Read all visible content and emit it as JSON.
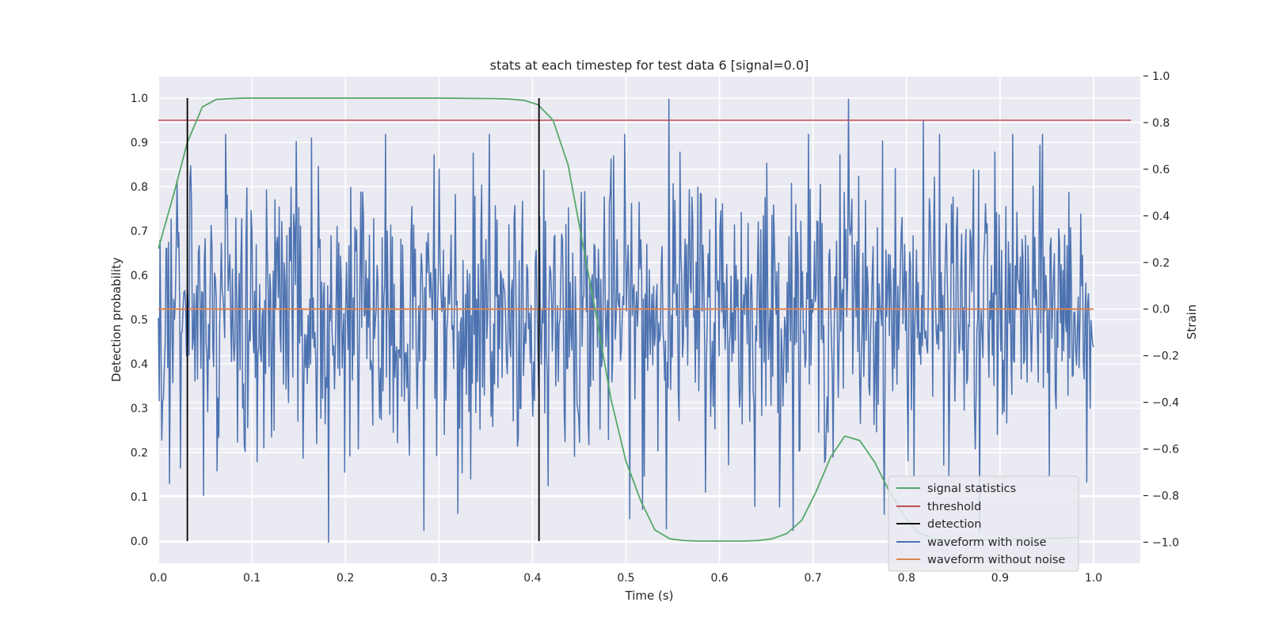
{
  "chart_data": {
    "type": "line",
    "title": "stats at each timestep for test data 6 [signal=0.0]",
    "xlabel": "Time (s)",
    "ylabel_left": "Detection probability",
    "ylabel_right": "Strain",
    "xlim": [
      0.0,
      1.05
    ],
    "ylim_left": [
      -0.05,
      1.05
    ],
    "ylim_right": [
      -1.09,
      1.0
    ],
    "x_ticks": [
      0.0,
      0.1,
      0.2,
      0.3,
      0.4,
      0.5,
      0.6,
      0.7,
      0.8,
      0.9,
      1.0
    ],
    "x_tick_labels": [
      "0.0",
      "0.1",
      "0.2",
      "0.3",
      "0.4",
      "0.5",
      "0.6",
      "0.7",
      "0.8",
      "0.9",
      "1.0"
    ],
    "y_left_ticks": [
      0.0,
      0.1,
      0.2,
      0.3,
      0.4,
      0.5,
      0.6,
      0.7,
      0.8,
      0.9,
      1.0
    ],
    "y_left_tick_labels": [
      "0.0",
      "0.1",
      "0.2",
      "0.3",
      "0.4",
      "0.5",
      "0.6",
      "0.7",
      "0.8",
      "0.9",
      "1.0"
    ],
    "y_right_ticks": [
      -1.0,
      -0.8,
      -0.6,
      -0.4,
      -0.2,
      0.0,
      0.2,
      0.4,
      0.6,
      0.8,
      1.0
    ],
    "y_right_tick_labels": [
      "−1.0",
      "−0.8",
      "−0.6",
      "−0.4",
      "−0.2",
      "0.0",
      "0.2",
      "0.4",
      "0.6",
      "0.8",
      "1.0"
    ],
    "grid": true,
    "legend_position": "bottom-right",
    "series": [
      {
        "name": "signal statistics",
        "axis": "left",
        "color": "#55a868",
        "x": [
          0.0,
          0.016,
          0.031,
          0.047,
          0.062,
          0.078,
          0.094,
          0.109,
          0.2,
          0.3,
          0.359,
          0.375,
          0.391,
          0.406,
          0.422,
          0.438,
          0.453,
          0.469,
          0.484,
          0.5,
          0.516,
          0.531,
          0.547,
          0.562,
          0.578,
          0.6,
          0.625,
          0.641,
          0.656,
          0.672,
          0.688,
          0.703,
          0.719,
          0.734,
          0.75,
          0.766,
          0.781,
          0.797,
          0.812,
          0.828,
          0.844,
          0.859,
          0.875,
          0.9,
          0.95,
          0.984
        ],
        "y": [
          0.66,
          0.78,
          0.9,
          0.98,
          0.997,
          0.999,
          1.0,
          1.0,
          1.0,
          1.0,
          0.999,
          0.998,
          0.995,
          0.985,
          0.95,
          0.85,
          0.68,
          0.5,
          0.32,
          0.18,
          0.09,
          0.025,
          0.005,
          0.001,
          0.0,
          0.0,
          0.0,
          0.001,
          0.005,
          0.017,
          0.047,
          0.11,
          0.19,
          0.237,
          0.227,
          0.178,
          0.115,
          0.058,
          0.02,
          0.006,
          0.002,
          0.001,
          0.002,
          0.004,
          0.006,
          0.008
        ]
      },
      {
        "name": "threshold",
        "axis": "left",
        "color": "#c44e52",
        "x": [
          0.0,
          1.04
        ],
        "y": [
          0.95,
          0.95
        ]
      },
      {
        "name": "detection",
        "axis": "left",
        "color": "#000000",
        "x": [
          0.031,
          0.407
        ],
        "y_min": 0.0,
        "y_max": 1.0
      },
      {
        "name": "waveform with noise",
        "axis": "right",
        "color": "#4c72b0",
        "x_range": [
          0.0,
          1.0
        ],
        "amplitude_std": 0.3,
        "peaks": [
          {
            "x": 0.546,
            "y": 0.9
          },
          {
            "x": 0.738,
            "y": 0.9
          },
          {
            "x": 0.818,
            "y": 0.81
          },
          {
            "x": 0.182,
            "y": -1.0
          },
          {
            "x": 0.878,
            "y": -0.96
          },
          {
            "x": 0.518,
            "y": -0.86
          }
        ]
      },
      {
        "name": "waveform without noise",
        "axis": "right",
        "color": "#dd8452",
        "x": [
          0.0,
          1.0
        ],
        "y": [
          0.0,
          0.0
        ]
      }
    ]
  }
}
